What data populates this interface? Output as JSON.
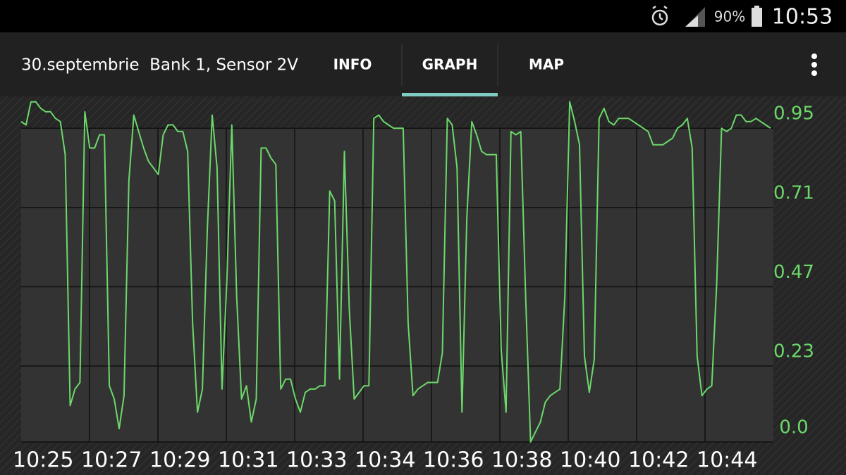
{
  "status_bar": {
    "battery": "90%",
    "time": "10:53"
  },
  "toolbar": {
    "title": "30.septembrie  Bank 1, Sensor 2V",
    "tabs": [
      "INFO",
      "GRAPH",
      "MAP"
    ]
  },
  "chart_data": {
    "type": "line",
    "color": "#6cd86a",
    "grid": true,
    "x_tick_labels": [
      "10:25",
      "10:27",
      "10:29",
      "10:31",
      "10:33",
      "10:34",
      "10:36",
      "10:38",
      "10:40",
      "10:42",
      "10:44"
    ],
    "ylim": [
      0,
      1.04
    ],
    "yticks": [
      {
        "value": 0,
        "label": "0.0"
      },
      0.23,
      0.47,
      0.71,
      0.95
    ],
    "values": [
      0.97,
      0.96,
      1.03,
      1.03,
      1.01,
      1.0,
      1.0,
      0.98,
      0.97,
      0.87,
      0.11,
      0.16,
      0.18,
      1.0,
      0.89,
      0.89,
      0.93,
      0.93,
      0.17,
      0.13,
      0.04,
      0.14,
      0.79,
      0.99,
      0.94,
      0.89,
      0.85,
      0.83,
      0.81,
      0.93,
      0.96,
      0.96,
      0.94,
      0.94,
      0.88,
      0.36,
      0.09,
      0.16,
      0.64,
      0.99,
      0.83,
      0.16,
      0.49,
      0.96,
      0.44,
      0.13,
      0.17,
      0.06,
      0.13,
      0.89,
      0.89,
      0.86,
      0.84,
      0.16,
      0.19,
      0.19,
      0.13,
      0.09,
      0.15,
      0.16,
      0.16,
      0.17,
      0.17,
      0.76,
      0.73,
      0.19,
      0.88,
      0.4,
      0.13,
      0.15,
      0.17,
      0.17,
      0.98,
      0.99,
      0.97,
      0.96,
      0.95,
      0.95,
      0.95,
      0.36,
      0.14,
      0.16,
      0.17,
      0.18,
      0.18,
      0.18,
      0.27,
      0.98,
      0.96,
      0.83,
      0.09,
      0.68,
      0.97,
      0.93,
      0.88,
      0.87,
      0.87,
      0.87,
      0.28,
      0.09,
      0.94,
      0.93,
      0.94,
      0.44,
      0.0,
      0.03,
      0.06,
      0.12,
      0.14,
      0.15,
      0.16,
      0.44,
      1.03,
      0.97,
      0.9,
      0.26,
      0.15,
      0.25,
      0.98,
      1.01,
      0.97,
      0.96,
      0.98,
      0.98,
      0.98,
      0.97,
      0.96,
      0.95,
      0.94,
      0.9,
      0.9,
      0.9,
      0.91,
      0.92,
      0.95,
      0.96,
      0.98,
      0.89,
      0.26,
      0.14,
      0.16,
      0.17,
      0.48,
      0.95,
      0.94,
      0.95,
      0.99,
      0.99,
      0.97,
      0.97,
      0.98,
      0.97,
      0.96,
      0.95
    ]
  }
}
